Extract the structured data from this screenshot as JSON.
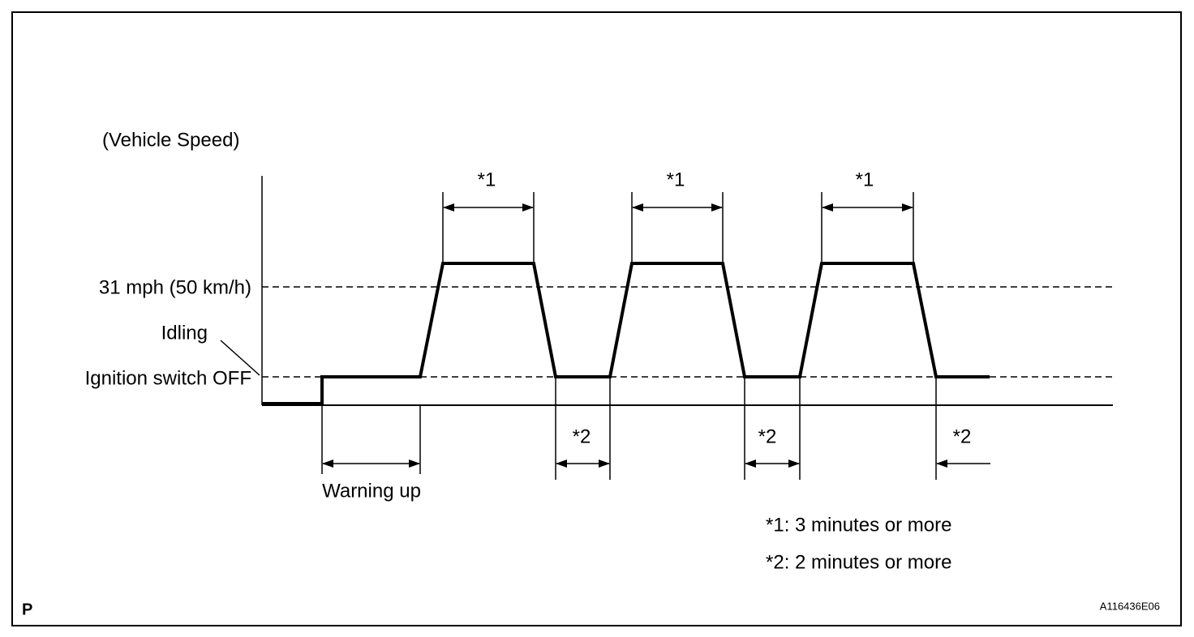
{
  "axis_label": "(Vehicle Speed)",
  "levels": {
    "speed": "31 mph (50 km/h)",
    "idling": "Idling",
    "off": "Ignition switch OFF"
  },
  "intervals": {
    "star1": [
      "*1",
      "*1",
      "*1"
    ],
    "star2": [
      "*2",
      "*2",
      "*2"
    ],
    "warming": "Warning up"
  },
  "legend": [
    "*1: 3 minutes or more",
    "*2: 2 minutes or more"
  ],
  "footer": {
    "corner": "P",
    "code": "A116436E06"
  }
}
